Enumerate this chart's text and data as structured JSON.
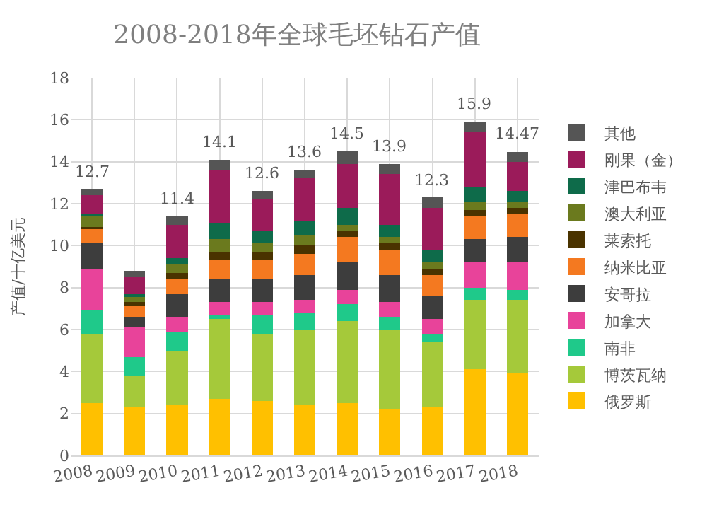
{
  "chart_data": {
    "type": "bar",
    "title": "2008-2018年全球毛坯钻石产值",
    "ylabel": "产值/十亿美元",
    "categories": [
      "2008",
      "2009",
      "2010",
      "2011",
      "2012",
      "2013",
      "2014",
      "2015",
      "2016",
      "2017",
      "2018"
    ],
    "stacked": true,
    "ylim": [
      0,
      18
    ],
    "yticks": [
      0,
      2,
      4,
      6,
      8,
      10,
      12,
      14,
      16,
      18
    ],
    "grid": true,
    "legend": "right",
    "totals": [
      "12.7",
      null,
      "11.4",
      "14.1",
      "12.6",
      "13.6",
      "14.5",
      "13.9",
      "12.3",
      "15.9",
      "14.47"
    ],
    "series": [
      {
        "name": "俄罗斯",
        "color": "#ffc000",
        "values": [
          2.5,
          2.3,
          2.4,
          2.7,
          2.6,
          2.4,
          2.5,
          2.2,
          2.3,
          4.1,
          3.9
        ]
      },
      {
        "name": "博茨瓦纳",
        "color": "#a5c93a",
        "values": [
          3.3,
          1.5,
          2.6,
          3.8,
          3.2,
          3.6,
          3.9,
          3.8,
          3.1,
          3.3,
          3.5
        ]
      },
      {
        "name": "南非",
        "color": "#1fc98a",
        "values": [
          1.1,
          0.9,
          0.9,
          0.2,
          0.9,
          0.8,
          0.8,
          0.6,
          0.4,
          0.6,
          0.5
        ]
      },
      {
        "name": "加拿大",
        "color": "#e8439a",
        "values": [
          2.0,
          1.4,
          0.7,
          0.6,
          0.6,
          0.6,
          0.7,
          0.7,
          0.7,
          1.2,
          1.3
        ]
      },
      {
        "name": "安哥拉",
        "color": "#3d3d3d",
        "values": [
          1.2,
          0.5,
          1.1,
          1.1,
          1.1,
          1.2,
          1.3,
          1.3,
          1.1,
          1.1,
          1.2
        ]
      },
      {
        "name": "纳米比亚",
        "color": "#f47920",
        "values": [
          0.7,
          0.5,
          0.7,
          0.9,
          0.9,
          1.0,
          1.2,
          1.2,
          1.0,
          1.1,
          1.1
        ]
      },
      {
        "name": "莱索托",
        "color": "#4a3300",
        "values": [
          0.1,
          0.2,
          0.3,
          0.4,
          0.4,
          0.4,
          0.3,
          0.3,
          0.3,
          0.3,
          0.3
        ]
      },
      {
        "name": "澳大利亚",
        "color": "#6b7a1e",
        "values": [
          0.5,
          0.3,
          0.4,
          0.6,
          0.4,
          0.5,
          0.3,
          0.3,
          0.3,
          0.4,
          0.3
        ]
      },
      {
        "name": "津巴布韦",
        "color": "#0e6b4a",
        "values": [
          0.1,
          0.1,
          0.3,
          0.8,
          0.6,
          0.7,
          0.8,
          0.6,
          0.6,
          0.7,
          0.5
        ]
      },
      {
        "name": "刚果（金）",
        "color": "#9b1b5a",
        "values": [
          0.9,
          0.8,
          1.6,
          2.5,
          1.5,
          2.0,
          2.1,
          2.4,
          2.0,
          2.6,
          1.4
        ]
      },
      {
        "name": "其他",
        "color": "#555555",
        "values": [
          0.3,
          0.3,
          0.4,
          0.5,
          0.4,
          0.4,
          0.6,
          0.5,
          0.5,
          0.5,
          0.47
        ]
      }
    ]
  }
}
